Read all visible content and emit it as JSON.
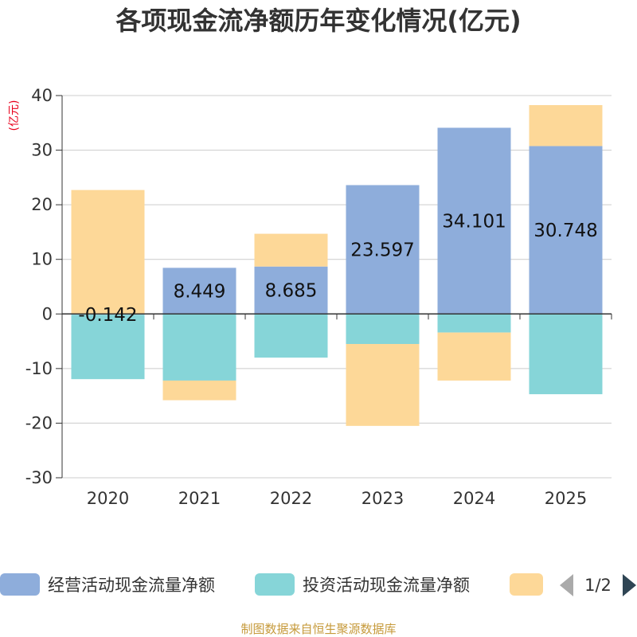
{
  "chart_data": {
    "type": "bar",
    "stacked": true,
    "title": "各项现金流净额历年变化情况(亿元)",
    "ylabel": "(亿元)",
    "ylim": [
      -30,
      40
    ],
    "yticks": [
      40,
      30,
      20,
      10,
      0,
      -10,
      -20,
      -30
    ],
    "categories": [
      "2020",
      "2021",
      "2022",
      "2023",
      "2024",
      "2025"
    ],
    "series": [
      {
        "name": "经营活动现金流量净额",
        "color": "#8eaddb",
        "values": [
          -0.142,
          8.449,
          8.685,
          23.597,
          34.101,
          30.748
        ]
      },
      {
        "name": "投资活动现金流量净额",
        "color": "#86d5d8",
        "values": [
          -11.8,
          -12.2,
          -8.0,
          -5.5,
          -3.4,
          -14.7
        ]
      },
      {
        "name": "",
        "color": "#fdd898",
        "values": [
          22.7,
          -3.6,
          6.0,
          -15.0,
          -8.8,
          7.5
        ]
      }
    ],
    "data_labels": [
      "-0.142",
      "8.449",
      "8.685",
      "23.597",
      "34.101",
      "30.748"
    ],
    "legend_position": "bottom"
  },
  "legend": {
    "items": [
      "经营活动现金流量净额",
      "投资活动现金流量净额",
      ""
    ],
    "page_text": "1/2"
  },
  "source": "制图数据来自恒生聚源数据库"
}
